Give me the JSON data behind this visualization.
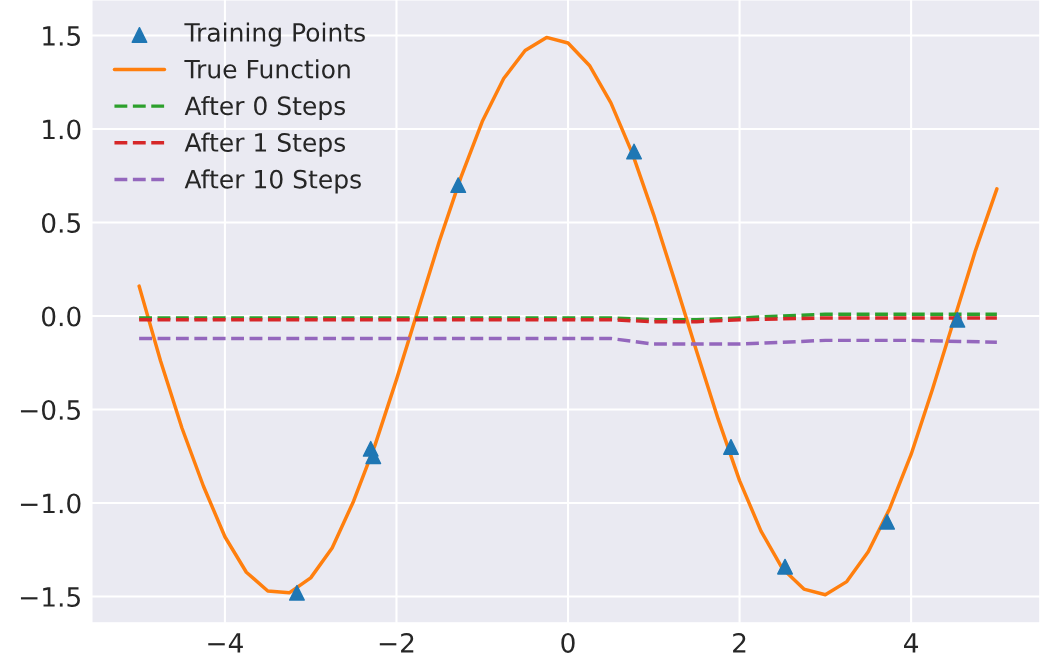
{
  "chart_data": {
    "type": "line",
    "xlim": [
      -5.55,
      5.5
    ],
    "ylim": [
      -1.64,
      1.69
    ],
    "xticks": [
      {
        "value": -4,
        "label": "−4"
      },
      {
        "value": -2,
        "label": "−2"
      },
      0,
      2,
      4
    ],
    "yticks": [
      {
        "value": -1.5,
        "label": "−1.5"
      },
      {
        "value": -1.0,
        "label": "−1.0"
      },
      {
        "value": -0.5,
        "label": "−0.5"
      },
      {
        "value": 0.0,
        "label": "0.0"
      },
      {
        "value": 0.5,
        "label": "0.5"
      },
      {
        "value": 1.0,
        "label": "1.0"
      },
      {
        "value": 1.5,
        "label": "1.5"
      }
    ],
    "grid": true,
    "legend": "top left",
    "series": [
      {
        "name": "Training Points",
        "type": "scatter",
        "marker": "triangle",
        "color": "#1f77b4",
        "x": [
          -3.16,
          -2.3,
          -2.27,
          -1.28,
          0.77,
          1.9,
          2.53,
          3.72,
          4.54
        ],
        "values": [
          -1.48,
          -0.71,
          -0.75,
          0.7,
          0.88,
          -0.7,
          -1.34,
          -1.1,
          -0.02
        ]
      },
      {
        "name": "True Function",
        "line_style": "solid",
        "color": "#ff7f0e",
        "x": [
          -5,
          -4.75,
          -4.5,
          -4.25,
          -4,
          -3.75,
          -3.5,
          -3.25,
          -3,
          -2.75,
          -2.5,
          -2.25,
          -2,
          -1.75,
          -1.5,
          -1.25,
          -1,
          -0.75,
          -0.5,
          -0.25,
          0,
          0.25,
          0.5,
          0.75,
          1,
          1.25,
          1.5,
          1.75,
          2,
          2.25,
          2.5,
          2.75,
          3,
          3.25,
          3.5,
          3.75,
          4,
          4.25,
          4.5,
          4.75,
          5
        ],
        "values": [
          0.16,
          -0.24,
          -0.6,
          -0.91,
          -1.18,
          -1.37,
          -1.47,
          -1.48,
          -1.4,
          -1.24,
          -0.99,
          -0.69,
          -0.34,
          0.03,
          0.4,
          0.74,
          1.04,
          1.27,
          1.42,
          1.49,
          1.46,
          1.34,
          1.14,
          0.87,
          0.54,
          0.18,
          -0.19,
          -0.55,
          -0.88,
          -1.15,
          -1.35,
          -1.46,
          -1.49,
          -1.42,
          -1.26,
          -1.03,
          -0.74,
          -0.39,
          -0.02,
          0.35,
          0.68
        ]
      },
      {
        "name": "After 0 Steps",
        "line_style": "dashed",
        "color": "#2ca02c",
        "x": [
          -5,
          -4,
          -3,
          -2,
          -1,
          0,
          0.5,
          1,
          1.5,
          2,
          3,
          4,
          5
        ],
        "values": [
          -0.01,
          -0.01,
          -0.01,
          -0.01,
          -0.01,
          -0.01,
          -0.01,
          -0.02,
          -0.02,
          -0.01,
          0.01,
          0.01,
          0.01
        ]
      },
      {
        "name": "After 1 Steps",
        "line_style": "dashed",
        "color": "#d62728",
        "x": [
          -5,
          -4,
          -3,
          -2,
          -1,
          0,
          0.5,
          1,
          1.5,
          2,
          3,
          4,
          5
        ],
        "values": [
          -0.02,
          -0.02,
          -0.02,
          -0.02,
          -0.02,
          -0.02,
          -0.02,
          -0.03,
          -0.03,
          -0.02,
          -0.01,
          -0.01,
          -0.01
        ]
      },
      {
        "name": "After 10 Steps",
        "line_style": "dashed",
        "color": "#9467bd",
        "x": [
          -5,
          -4,
          -3,
          -2,
          -1,
          0,
          0.5,
          1,
          1.5,
          2,
          3,
          4,
          5
        ],
        "values": [
          -0.12,
          -0.12,
          -0.12,
          -0.12,
          -0.12,
          -0.12,
          -0.12,
          -0.15,
          -0.15,
          -0.15,
          -0.13,
          -0.13,
          -0.14
        ]
      }
    ]
  }
}
